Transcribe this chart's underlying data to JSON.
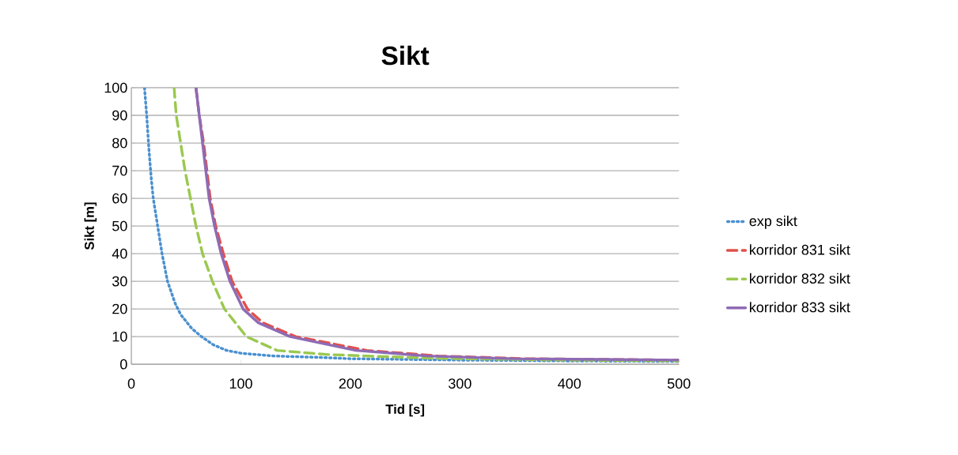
{
  "chart_data": {
    "type": "line",
    "title": "Sikt",
    "xlabel": "Tid [s]",
    "ylabel": "Sikt [m]",
    "xlim": [
      0,
      500
    ],
    "ylim": [
      0,
      100
    ],
    "xticks": [
      0,
      100,
      200,
      300,
      400,
      500
    ],
    "yticks": [
      0,
      10,
      20,
      30,
      40,
      50,
      60,
      70,
      80,
      90,
      100
    ],
    "grid": "y",
    "legend": "right",
    "marker": "none",
    "series": [
      {
        "name": "exp sikt",
        "color": "#4a90d0",
        "line_style": "dotted",
        "x": [
          12,
          14,
          16,
          18,
          20,
          24,
          28,
          33,
          40,
          45,
          55,
          64,
          75,
          87,
          100,
          130,
          170,
          200,
          300,
          400,
          500
        ],
        "values": [
          100,
          90,
          78,
          68,
          60,
          50,
          40,
          30,
          22,
          18,
          13,
          10,
          7,
          5,
          4,
          3,
          2.5,
          2,
          1.5,
          1.2,
          1
        ]
      },
      {
        "name": "korridor 831 sikt",
        "color": "#e0504a",
        "line_style": "dashed",
        "x": [
          59,
          62,
          66,
          69,
          72,
          77,
          84,
          92,
          106,
          120,
          150,
          215,
          280,
          360,
          500
        ],
        "values": [
          100,
          90,
          80,
          70,
          60,
          50,
          40,
          30,
          20,
          15,
          10,
          5,
          3,
          2,
          1.5
        ]
      },
      {
        "name": "korridor 832 sikt",
        "color": "#9bc850",
        "line_style": "dashed",
        "x": [
          39,
          41,
          45,
          49,
          54,
          59,
          65,
          74,
          85,
          105,
          133,
          180,
          250,
          300,
          400,
          500
        ],
        "values": [
          100,
          90,
          80,
          70,
          60,
          50,
          40,
          30,
          20,
          10,
          5,
          3.5,
          2.5,
          2,
          1.5,
          1.2
        ]
      },
      {
        "name": "korridor 833 sikt",
        "color": "#8e6bb5",
        "line_style": "solid",
        "x": [
          59,
          62,
          65,
          68,
          71,
          76,
          82,
          90,
          102,
          116,
          145,
          205,
          270,
          350,
          500
        ],
        "values": [
          100,
          90,
          80,
          70,
          60,
          50,
          40,
          30,
          20,
          15,
          10,
          5,
          3,
          2,
          1.5
        ]
      }
    ]
  }
}
